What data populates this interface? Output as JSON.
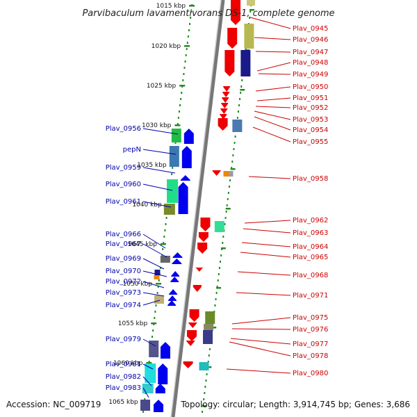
{
  "title": "Parvibaculum lavamentivorans DS-1, complete genome",
  "footer": {
    "accession": "Accession: NC_009719",
    "topology": "Topology: circular; Length: 3,914,745 bp; Genes: 3,686"
  },
  "colors": {
    "forward_arrow": "#0000ee",
    "reverse_arrow": "#ee0000",
    "left_label": "#0000aa",
    "right_label": "#cc0000",
    "tick": "#228b22",
    "backbone": "#888888"
  },
  "kbp_ticks": [
    "1015 kbp",
    "1020 kbp",
    "1025 kbp",
    "1030 kbp",
    "1035 kbp",
    "1040 kbp",
    "1045 kbp",
    "1050 kbp",
    "1055 kbp",
    "1060 kbp",
    "1065 kbp"
  ],
  "left_genes": [
    {
      "label": "Plav_0956"
    },
    {
      "label": "pepN"
    },
    {
      "label": "Plav_0959"
    },
    {
      "label": "Plav_0960"
    },
    {
      "label": "Plav_0961"
    },
    {
      "label": "Plav_0966"
    },
    {
      "label": "Plav_0967"
    },
    {
      "label": "Plav_0969"
    },
    {
      "label": "Plav_0970"
    },
    {
      "label": "Plav_0972"
    },
    {
      "label": "Plav_0973"
    },
    {
      "label": "Plav_0974"
    },
    {
      "label": "Plav_0979"
    },
    {
      "label": "Plav_0981"
    },
    {
      "label": "Plav_0982"
    },
    {
      "label": "Plav_0983"
    }
  ],
  "right_genes": [
    {
      "label": "Plav_0945"
    },
    {
      "label": "Plav_0946"
    },
    {
      "label": "Plav_0947"
    },
    {
      "label": "Plav_0948"
    },
    {
      "label": "Plav_0949"
    },
    {
      "label": "Plav_0950"
    },
    {
      "label": "Plav_0951"
    },
    {
      "label": "Plav_0952"
    },
    {
      "label": "Plav_0953"
    },
    {
      "label": "Plav_0954"
    },
    {
      "label": "Plav_0955"
    },
    {
      "label": "Plav_0958"
    },
    {
      "label": "Plav_0962"
    },
    {
      "label": "Plav_0963"
    },
    {
      "label": "Plav_0964"
    },
    {
      "label": "Plav_0965"
    },
    {
      "label": "Plav_0968"
    },
    {
      "label": "Plav_0971"
    },
    {
      "label": "Plav_0975"
    },
    {
      "label": "Plav_0976"
    },
    {
      "label": "Plav_0977"
    },
    {
      "label": "Plav_0978"
    },
    {
      "label": "Plav_0980"
    }
  ]
}
